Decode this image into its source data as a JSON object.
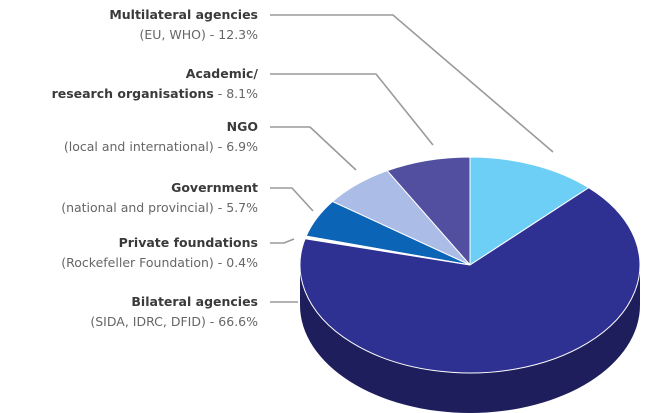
{
  "chart_data": {
    "type": "pie3d",
    "categories": [
      "Multilateral agencies",
      "Academic/\nresearch organisations",
      "NGO",
      "Government",
      "Private foundations",
      "Bilateral agencies"
    ],
    "values": [
      12.3,
      8.1,
      6.9,
      5.7,
      0.4,
      66.6
    ],
    "value_labels": [
      "(EU, WHO) - 12.3%",
      "- 8.1%",
      "(local and international) - 6.9%",
      "(national and provincial) - 5.7%",
      "(Rockefeller Foundation) - 0.4%",
      "(SIDA, IDRC, DFID) - 66.6%"
    ],
    "colors": [
      "#6dcff6",
      "#524fa1",
      "#abbde6",
      "#0b64b6",
      "#ffffff",
      "#2e3192"
    ]
  }
}
